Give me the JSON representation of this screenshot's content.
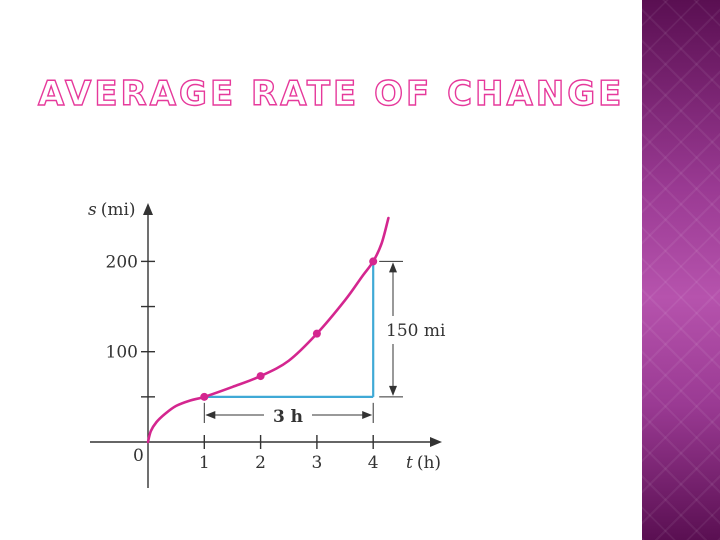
{
  "slide": {
    "title": "AVERAGE RATE OF CHANGE"
  },
  "colors": {
    "title_fill": "#ffffff",
    "title_outline": "#e6399b",
    "curve": "#d4268f",
    "segment": "#3fa9d6",
    "axis": "#333333",
    "panel": "#9a3a93"
  },
  "chart_data": {
    "type": "line",
    "xlabel_var": "t",
    "xlabel_unit": "(h)",
    "ylabel_var": "s",
    "ylabel_unit": "(mi)",
    "origin_label": "0",
    "xlim": [
      0,
      5.2
    ],
    "ylim": [
      0,
      260
    ],
    "x_ticks": [
      {
        "value": 1,
        "label": "1"
      },
      {
        "value": 2,
        "label": "2"
      },
      {
        "value": 3,
        "label": "3"
      },
      {
        "value": 4,
        "label": "4"
      }
    ],
    "y_ticks": [
      {
        "value": 50,
        "label": ""
      },
      {
        "value": 100,
        "label": "100"
      },
      {
        "value": 150,
        "label": ""
      },
      {
        "value": 200,
        "label": "200"
      }
    ],
    "curve": [
      [
        0,
        0
      ],
      [
        0.05,
        12
      ],
      [
        0.15,
        22
      ],
      [
        0.3,
        31
      ],
      [
        0.5,
        40
      ],
      [
        0.75,
        46
      ],
      [
        1,
        50
      ],
      [
        1.5,
        61
      ],
      [
        2,
        73
      ],
      [
        2.5,
        90
      ],
      [
        3,
        120
      ],
      [
        3.5,
        157
      ],
      [
        3.8,
        183
      ],
      [
        4,
        200
      ],
      [
        4.15,
        220
      ],
      [
        4.27,
        248
      ]
    ],
    "points": [
      {
        "x": 1,
        "y": 50
      },
      {
        "x": 2,
        "y": 73
      },
      {
        "x": 3,
        "y": 120
      },
      {
        "x": 4,
        "y": 200
      }
    ],
    "horizontal_span": {
      "x1": 1,
      "x2": 4,
      "y": 50,
      "label": "3 h"
    },
    "vertical_span": {
      "x": 4,
      "y1": 50,
      "y2": 200,
      "label": "150 mi"
    }
  }
}
